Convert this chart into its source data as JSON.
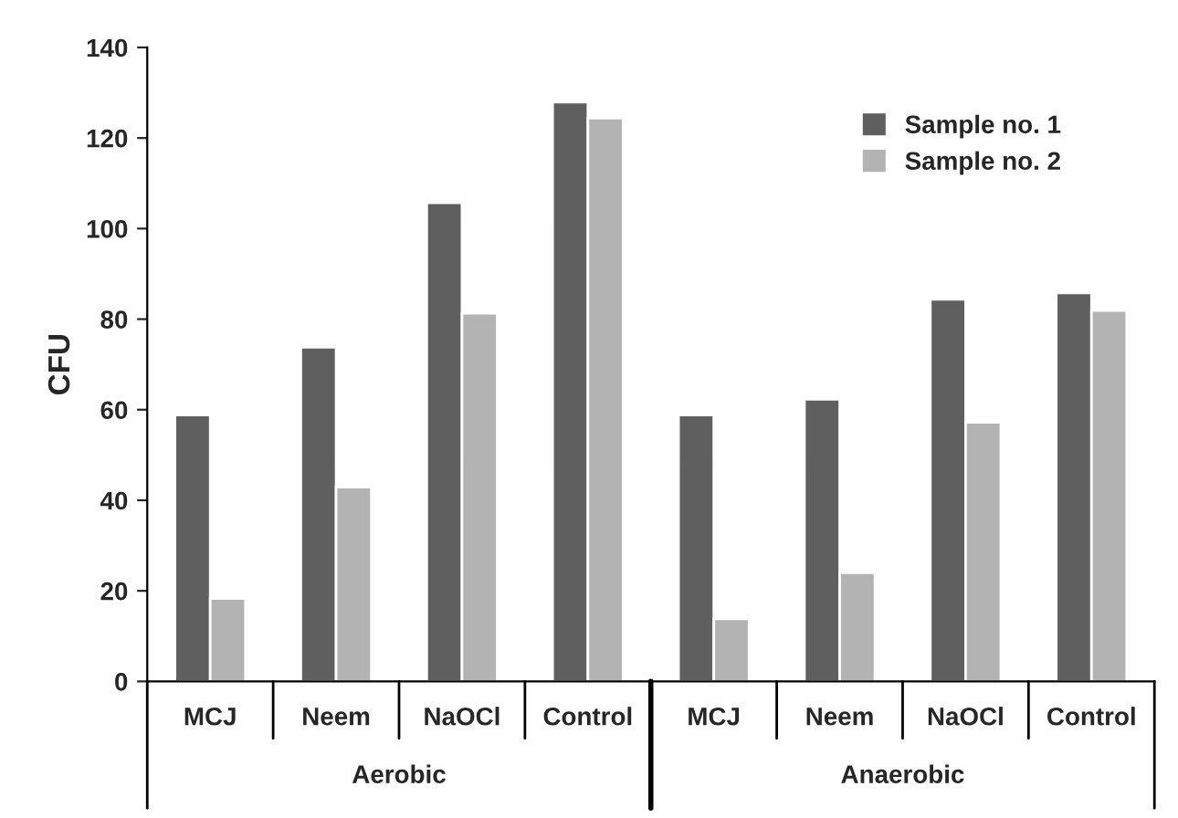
{
  "chart_data": {
    "type": "bar",
    "ylabel": "CFU",
    "categories": [
      "MCJ",
      "Neem",
      "NaOCl",
      "Control",
      "MCJ",
      "Neem",
      "NaOCl",
      "Control"
    ],
    "series": [
      {
        "name": "Sample no. 1",
        "color": "#5f5f5f",
        "values": [
          58.8,
          73.8,
          105.7,
          127.9,
          58.8,
          62.3,
          84.4,
          85.8
        ]
      },
      {
        "name": "Sample no. 2",
        "color": "#b3b3b3",
        "values": [
          18.3,
          42.9,
          81.3,
          124.4,
          13.8,
          24.0,
          57.2,
          81.9
        ]
      }
    ],
    "ylim": [
      0,
      140
    ],
    "yticks": [
      0,
      20,
      40,
      60,
      80,
      100,
      120,
      140
    ],
    "annotations": [
      "Aerobic",
      "Anaerobic"
    ],
    "grid": false,
    "legend": "top right"
  }
}
